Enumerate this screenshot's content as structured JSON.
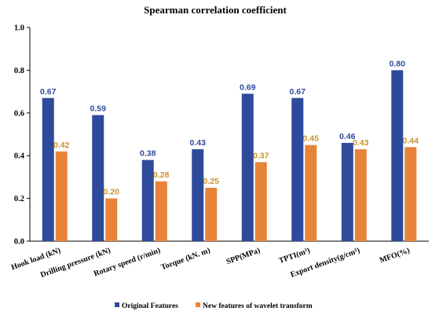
{
  "chart_data": {
    "type": "bar",
    "title": "Spearman correlation coefficient",
    "xlabel": "",
    "ylabel": "",
    "ylim": [
      0,
      1.0
    ],
    "yticks": [
      "0.0",
      "0.2",
      "0.4",
      "0.6",
      "0.8",
      "1.0"
    ],
    "grid": false,
    "legend_position": "bottom",
    "categories": [
      "Hook load (kN)",
      "Drilling pressure (kN)",
      "Rotary speed (r/min)",
      "Torque (kN. m)",
      "SPP(MPa)",
      "TPTI(m³)",
      "Export density(g/cm³)",
      "MFO(%)"
    ],
    "series": [
      {
        "name": "Original Features",
        "color": "#2E4A9A",
        "values": [
          0.67,
          0.59,
          0.38,
          0.43,
          0.69,
          0.67,
          0.46,
          0.8
        ],
        "labels": [
          "0.67",
          "0.59",
          "0.38",
          "0.43",
          "0.69",
          "0.67",
          "0.46",
          "0.80"
        ]
      },
      {
        "name": "New features of wavelet transform",
        "color": "#E8833A",
        "label_color": "#C9922E",
        "values": [
          0.42,
          0.2,
          0.28,
          0.25,
          0.37,
          0.45,
          0.43,
          0.44
        ],
        "labels": [
          "0.42",
          "0.20",
          "0.28",
          "0.25",
          "0.37",
          "0.45",
          "0.43",
          "0.44"
        ]
      }
    ]
  }
}
